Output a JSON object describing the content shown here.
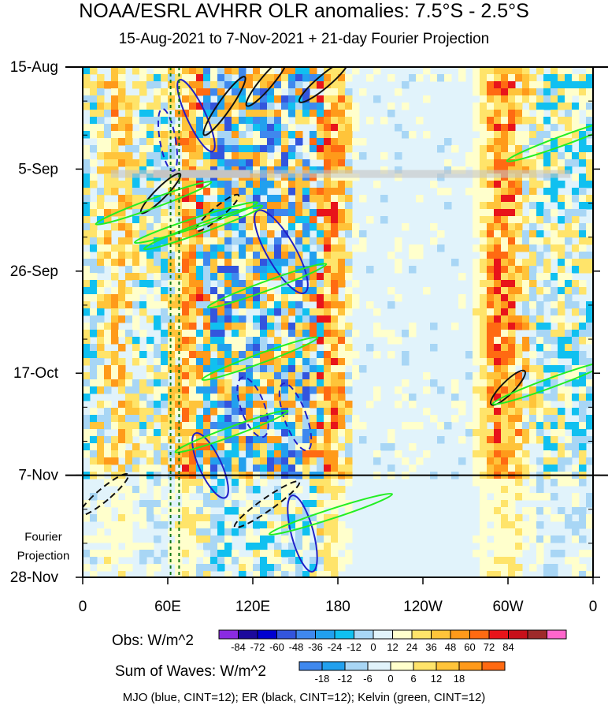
{
  "title": "NOAA/ESRL AVHRR OLR anomalies: 7.5°S - 2.5°S",
  "subtitle": "15-Aug-2021 to 7-Nov-2021 + 21-day Fourier Projection",
  "chart_data": {
    "type": "heatmap",
    "x_ticks": [
      {
        "label": "0",
        "lon": 0
      },
      {
        "label": "60E",
        "lon": 60
      },
      {
        "label": "120E",
        "lon": 120
      },
      {
        "label": "180",
        "lon": 180
      },
      {
        "label": "120W",
        "lon": 240
      },
      {
        "label": "60W",
        "lon": 300
      },
      {
        "label": "0",
        "lon": 360
      }
    ],
    "y_ticks": [
      {
        "label": "15-Aug",
        "day": 0
      },
      {
        "label": "5-Sep",
        "day": 21
      },
      {
        "label": "26-Sep",
        "day": 42
      },
      {
        "label": "17-Oct",
        "day": 63
      },
      {
        "label": "7-Nov",
        "day": 84
      },
      {
        "label": "28-Nov",
        "day": 105
      }
    ],
    "xlim": [
      0,
      360
    ],
    "ylim_days": [
      0,
      105
    ],
    "projection_start_day": 84,
    "projection_label": "Fourier\nProjection",
    "dotted_lines_lon": [
      62,
      68
    ],
    "colorbar_obs": {
      "title": "Obs: W/m^2",
      "labels": [
        "-84",
        "-72",
        "-60",
        "-48",
        "-36",
        "-24",
        "-12",
        "0",
        "12",
        "24",
        "36",
        "48",
        "60",
        "72",
        "84"
      ],
      "colors": [
        "#8a2be2",
        "#1c0a9c",
        "#0000d0",
        "#3355dd",
        "#3f88ee",
        "#22a0ee",
        "#10c0f0",
        "#a8d6f5",
        "#e1f3fb",
        "#ffffcc",
        "#ffe46a",
        "#ffc43a",
        "#ff9a1a",
        "#ff6a12",
        "#e8141a",
        "#c8101a",
        "#9e2a2a",
        "#ff66cc"
      ]
    },
    "colorbar_waves": {
      "title": "Sum of Waves: W/m^2",
      "labels": [
        "-18",
        "-12",
        "-6",
        "0",
        "6",
        "12",
        "18"
      ],
      "colors": [
        "#3f88ee",
        "#22a0ee",
        "#a8d6f5",
        "#e1f3fb",
        "#ffffcc",
        "#ffe46a",
        "#ffc43a",
        "#ff9a1a",
        "#ff6a12"
      ]
    },
    "contours": "MJO (blue, CINT=12); ER (black, CINT=12); Kelvin (green, CINT=12)",
    "contour_colors": {
      "MJO": "#2020c8",
      "ER": "#111111",
      "Kelvin": "#22ee22"
    }
  }
}
